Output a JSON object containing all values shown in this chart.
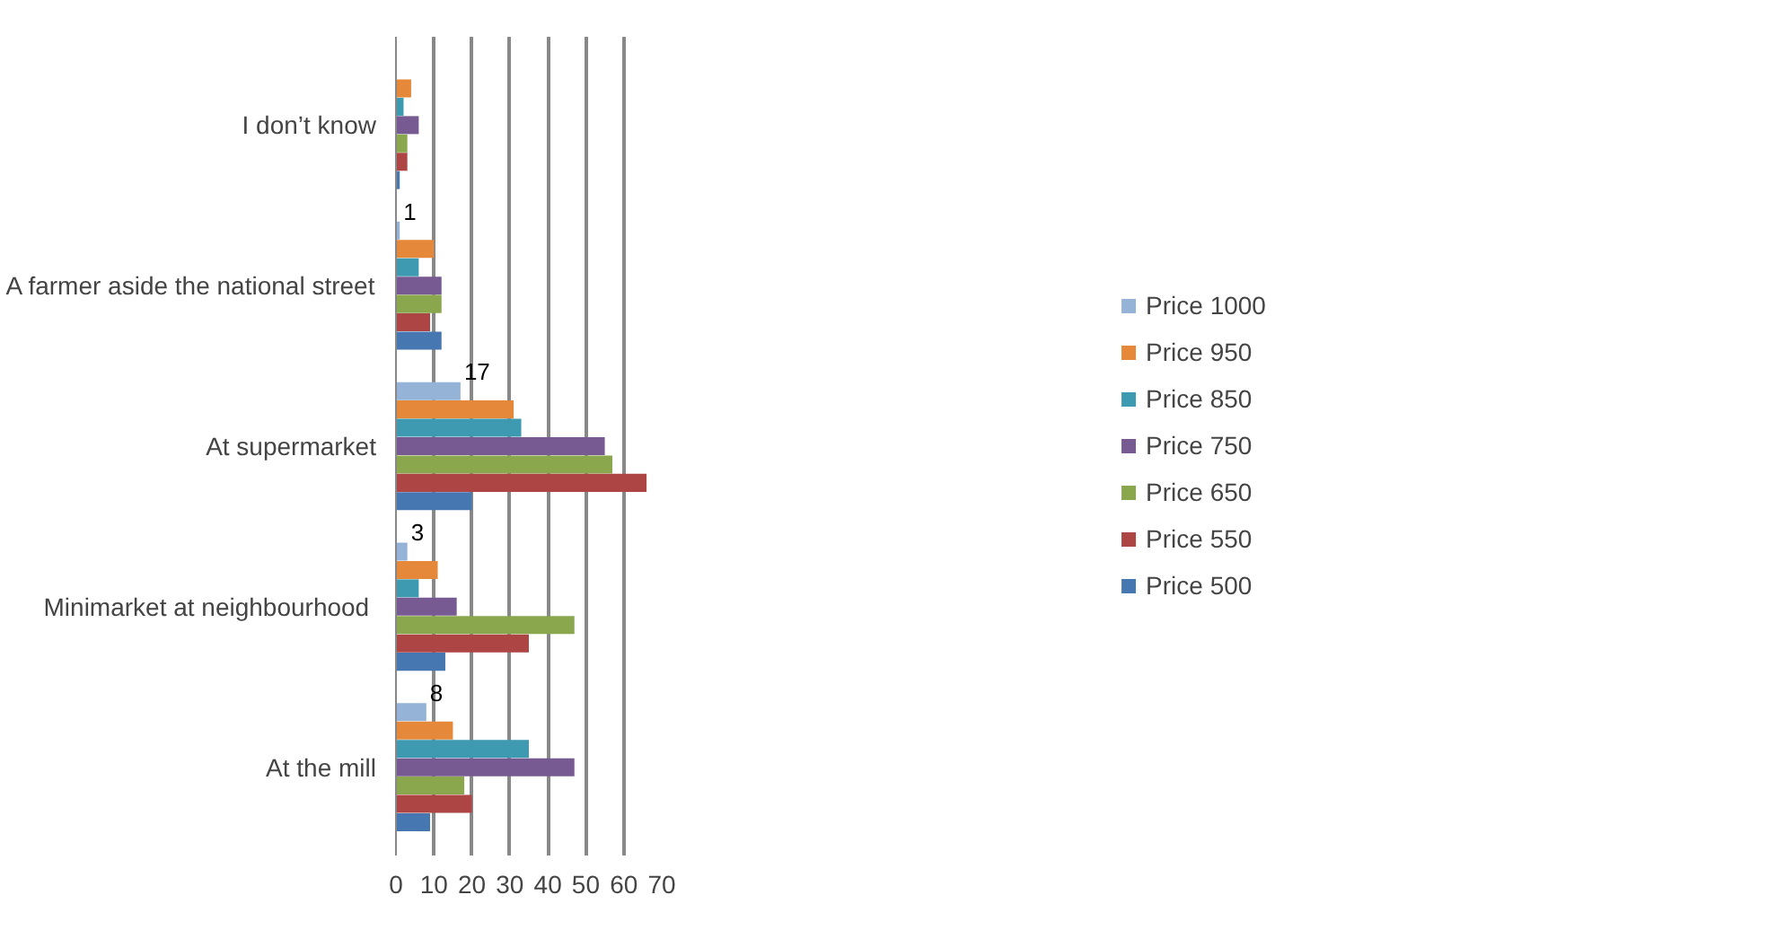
{
  "chart_data": {
    "type": "bar",
    "orientation": "horizontal",
    "categories": [
      "I don’t know",
      "A farmer aside the national street",
      "At supermarket",
      "Minimarket at  neighbourhood",
      "At the mill"
    ],
    "series": [
      {
        "name": "Price 1000",
        "color": "#95b3d7",
        "values": [
          null,
          1,
          17,
          3,
          8
        ],
        "value_labels": [
          null,
          "1",
          "17",
          "3",
          "8"
        ]
      },
      {
        "name": "Price 950",
        "color": "#e6883a",
        "values": [
          4,
          10,
          31,
          11,
          15
        ]
      },
      {
        "name": "Price 850",
        "color": "#3d9ab0",
        "values": [
          2,
          6,
          33,
          6,
          35
        ]
      },
      {
        "name": "Price 750",
        "color": "#775a92",
        "values": [
          6,
          12,
          55,
          16,
          47
        ]
      },
      {
        "name": "Price 650",
        "color": "#8aa74e",
        "values": [
          3,
          12,
          57,
          47,
          18
        ]
      },
      {
        "name": "Price 550",
        "color": "#ac4544",
        "values": [
          3,
          9,
          66,
          35,
          20
        ]
      },
      {
        "name": "Price 500",
        "color": "#4677b0",
        "values": [
          1,
          12,
          20,
          13,
          9
        ]
      }
    ],
    "xlim": [
      0,
      70
    ],
    "xticks": [
      0,
      10,
      20,
      30,
      40,
      50,
      60,
      70
    ],
    "grid": "x",
    "legend": "right"
  }
}
